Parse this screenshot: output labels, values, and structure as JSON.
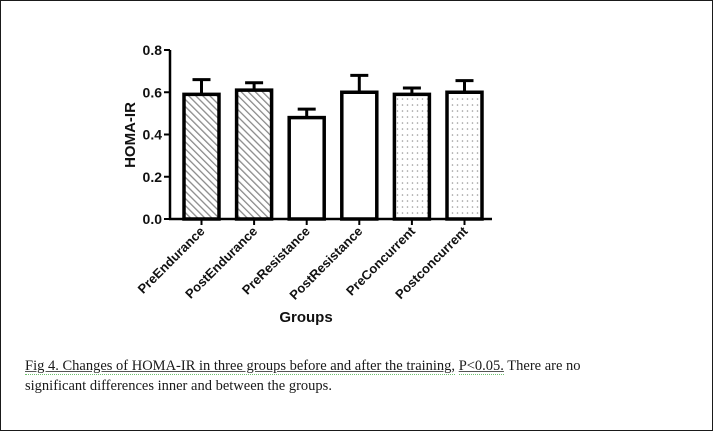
{
  "figure": {
    "caption_line1_underlined_a": "Fig 4. Changes of HOMA-IR in three groups before and after the training,",
    "caption_line1_underlined_b": "P<0.05.",
    "caption_line1_rest": " There are no",
    "caption_line2": "significant  differences inner and between the groups."
  },
  "chart_data": {
    "type": "bar",
    "title": "",
    "xlabel": "Groups",
    "ylabel": "HOMA-IR",
    "ylim": [
      0.0,
      0.8
    ],
    "yticks": [
      "0.0",
      "0.2",
      "0.4",
      "0.6",
      "0.8"
    ],
    "grid": false,
    "legend": null,
    "categories": [
      "PreEndurance",
      "PostEndurance",
      "PreResistance",
      "PostResistance",
      "PreConcurrent",
      "Postconcurrent"
    ],
    "values": [
      0.59,
      0.61,
      0.48,
      0.6,
      0.59,
      0.6
    ],
    "error_upper": [
      0.66,
      0.645,
      0.52,
      0.68,
      0.62,
      0.655
    ],
    "fill_patterns": [
      "diagonal-hatch",
      "diagonal-hatch",
      "none",
      "none",
      "dots",
      "dots"
    ],
    "colors": {
      "bar_edge": "#000000",
      "hatch": "#8a8a8a",
      "dots": "#9a9a9a",
      "fill": "#ffffff"
    }
  }
}
